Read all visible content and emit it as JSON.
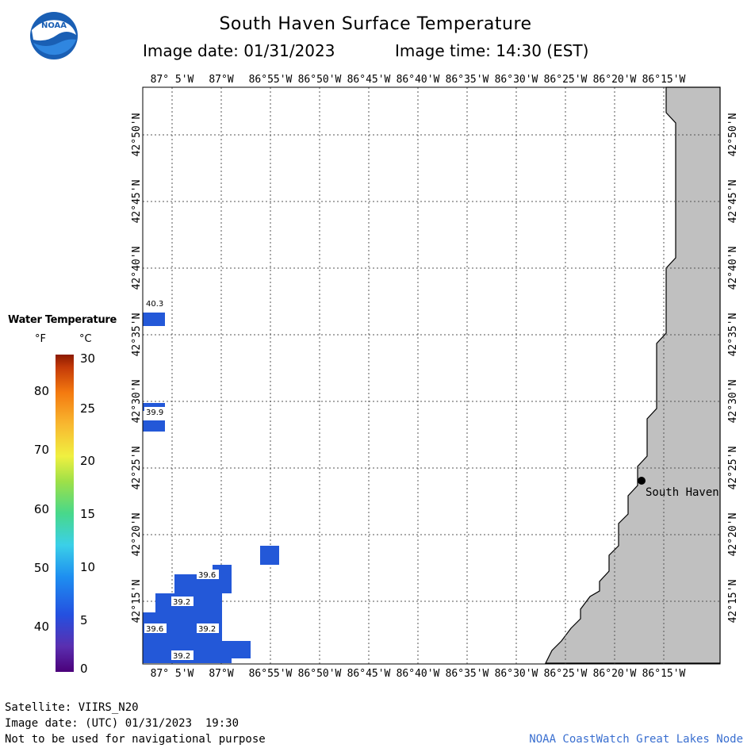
{
  "header": {
    "title": "South Haven Surface Temperature",
    "image_date": "Image date: 01/31/2023",
    "image_time": "Image time: 14:30 (EST)"
  },
  "logo": {
    "text": "NOAA"
  },
  "map": {
    "lon_labels": [
      "87° 5'W",
      "87°W",
      "86°55'W",
      "86°50'W",
      "86°45'W",
      "86°40'W",
      "86°35'W",
      "86°30'W",
      "86°25'W",
      "86°20'W",
      "86°15'W"
    ],
    "lat_labels": [
      "42°50'N",
      "42°45'N",
      "42°40'N",
      "42°35'N",
      "42°30'N",
      "42°25'N",
      "42°20'N",
      "42°15'N"
    ],
    "location": {
      "name": "South Haven"
    },
    "water_color": "#2358d8",
    "land_color": "#c0c0c0",
    "temperature_labels": [
      "40.3",
      "39.9",
      "39.6",
      "39.2",
      "39.6",
      "39.2",
      "39.2"
    ]
  },
  "legend": {
    "title": "Water Temperature",
    "unit_f": "°F",
    "unit_c": "°C",
    "fahrenheit_ticks": [
      "80",
      "70",
      "60",
      "50",
      "40"
    ],
    "celsius_ticks": [
      "30",
      "25",
      "20",
      "15",
      "10",
      "5",
      "0"
    ]
  },
  "footer": {
    "satellite": "Satellite: VIIRS_N20",
    "utc_date": "Image date: (UTC) 01/31/2023  19:30",
    "disclaimer": "Not to be used for navigational purpose",
    "credit": "NOAA CoastWatch Great Lakes Node"
  }
}
